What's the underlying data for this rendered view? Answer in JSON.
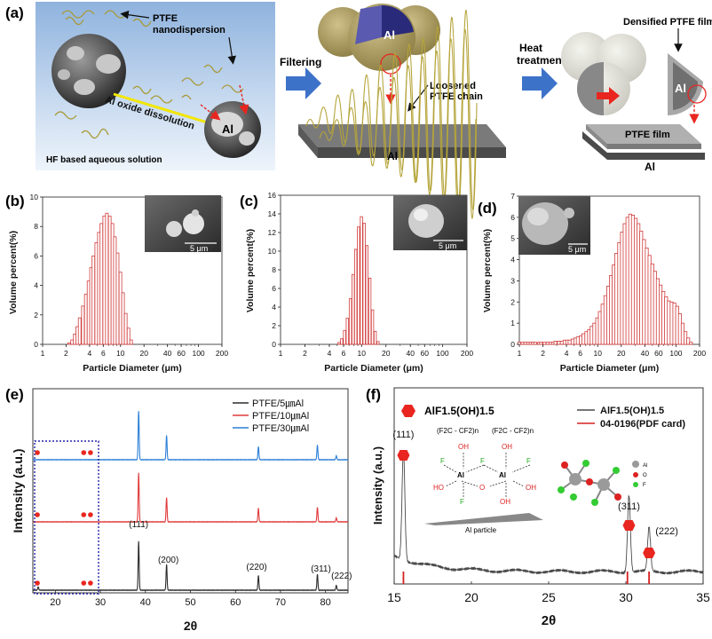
{
  "figure": {
    "panel_a": {
      "label": "(a)",
      "ptfe_nano": [
        "PTFE",
        "nanodispersion"
      ],
      "al_oxide": "Al oxide dissolution",
      "al": "Al",
      "hf": "HF based aqueous solution",
      "filtering": "Filtering",
      "loosened": [
        "Loosened",
        "PTFE chain"
      ],
      "heat": [
        "Heat",
        "treatment"
      ],
      "densified": "Densified PTFE film",
      "ptfe_film": "PTFE film"
    },
    "panel_b": {
      "label": "(b)",
      "scalebar": "5 μm"
    },
    "panel_c": {
      "label": "(c)",
      "scalebar": "5 μm"
    },
    "panel_d": {
      "label": "(d)",
      "scalebar": "5 μm"
    },
    "panel_e": {
      "label": "(e)"
    },
    "panel_f": {
      "label": "(f)",
      "marker_legend": "AlF1.5(OH)1.5",
      "chem_top_left": "(F2C - CF2)n",
      "chem_top_right": "(F2C - CF2)n",
      "al_particle": "Al particle",
      "atom_legend": [
        "Al",
        "O",
        "F"
      ]
    }
  },
  "colors": {
    "hist_edge": "#d13b3b",
    "line_5um": "#2b2b2b",
    "line_10um": "#e03a3a",
    "line_30um": "#2c7fd6",
    "arrow": "#3d72c9",
    "marker": "#e8261f",
    "dotted_box": "#2424a8",
    "pdf_line": "#d62020"
  },
  "chart_data": [
    {
      "id": "b",
      "type": "bar",
      "xscale": "log",
      "xlabel": "Particle Diameter (μm)",
      "ylabel": "Volume percent(%)",
      "xlim": [
        1,
        200
      ],
      "ylim": [
        0,
        10
      ],
      "xticks": [
        1,
        2,
        4,
        6,
        10,
        20,
        40,
        60,
        100,
        200
      ],
      "yticks": [
        0,
        2,
        4,
        6,
        8,
        10
      ],
      "x": [
        2.2,
        2.4,
        2.6,
        2.8,
        3.0,
        3.3,
        3.6,
        3.9,
        4.2,
        4.5,
        4.9,
        5.3,
        5.7,
        6.2,
        6.7,
        7.3,
        7.9,
        8.5,
        9.2,
        10,
        10.8,
        11.7,
        12.7,
        13.7
      ],
      "values": [
        0.1,
        0.3,
        0.7,
        1.2,
        1.8,
        2.6,
        3.4,
        4.3,
        5.2,
        6.0,
        6.9,
        7.6,
        8.2,
        8.7,
        8.9,
        8.7,
        8.2,
        7.3,
        6.2,
        4.9,
        3.5,
        2.1,
        1.1,
        0.3
      ]
    },
    {
      "id": "c",
      "type": "bar",
      "xscale": "log",
      "xlabel": "Particle Diameter (μm)",
      "ylabel": "Volume percent(%)",
      "xlim": [
        1,
        200
      ],
      "ylim": [
        0,
        16
      ],
      "xticks": [
        1,
        2,
        4,
        6,
        10,
        20,
        40,
        60,
        100,
        200
      ],
      "yticks": [
        0,
        2,
        4,
        6,
        8,
        10,
        12,
        14,
        16
      ],
      "x": [
        5.3,
        5.7,
        6.2,
        6.7,
        7.3,
        7.9,
        8.5,
        9.2,
        10,
        10.8,
        11.7,
        12.7,
        13.7,
        14.8,
        16.0
      ],
      "values": [
        0.2,
        0.6,
        1.5,
        2.8,
        4.9,
        7.5,
        10.2,
        12.6,
        13.7,
        13.0,
        10.6,
        7.1,
        3.7,
        1.4,
        0.3
      ]
    },
    {
      "id": "d",
      "type": "bar",
      "xscale": "log",
      "xlabel": "Particle Diameter (μm)",
      "ylabel": "Volume percent(%)",
      "xlim": [
        1,
        200
      ],
      "ylim": [
        0,
        7
      ],
      "xticks": [
        1,
        2,
        4,
        6,
        10,
        20,
        40,
        60,
        100,
        200
      ],
      "yticks": [
        0,
        1,
        2,
        3,
        4,
        5,
        6,
        7
      ],
      "x": [
        1.0,
        1.1,
        1.2,
        1.3,
        1.4,
        1.5,
        1.6,
        1.8,
        1.9,
        2.1,
        2.3,
        2.5,
        2.7,
        2.9,
        3.2,
        3.5,
        3.8,
        4.1,
        4.4,
        4.8,
        5.2,
        5.6,
        6.1,
        6.6,
        7.2,
        7.8,
        8.4,
        9.1,
        9.9,
        10.7,
        11.6,
        12.6,
        13.7,
        14.8,
        16.1,
        17.4,
        18.9,
        20.5,
        22.2,
        24.1,
        26.1,
        28.3,
        30.7,
        33.3,
        36.1,
        39.2,
        42.5,
        46.1,
        50.0,
        54.2,
        58.8,
        63.8,
        69.2,
        75.0,
        81.4,
        88.3,
        95.7,
        103.8,
        112.6,
        122.1,
        132.5,
        143.6,
        155.8
      ],
      "values": [
        0.1,
        0.1,
        0.1,
        0.1,
        0.1,
        0.1,
        0.1,
        0.1,
        0.1,
        0.1,
        0.1,
        0.1,
        0.1,
        0.15,
        0.15,
        0.15,
        0.2,
        0.2,
        0.2,
        0.25,
        0.3,
        0.35,
        0.4,
        0.5,
        0.6,
        0.7,
        0.85,
        1.0,
        1.25,
        1.55,
        1.9,
        2.3,
        2.75,
        3.25,
        3.75,
        4.3,
        4.8,
        5.3,
        5.7,
        6.0,
        6.15,
        6.1,
        5.95,
        5.7,
        5.35,
        4.95,
        4.55,
        4.2,
        3.8,
        3.45,
        3.1,
        2.8,
        2.5,
        2.25,
        2.05,
        2.0,
        1.95,
        1.8,
        1.45,
        1.0,
        0.6,
        0.3,
        0.1
      ]
    },
    {
      "id": "e",
      "type": "line",
      "xlabel": "2θ",
      "ylabel": "Intensity (a.u.)",
      "xlim": [
        15,
        85
      ],
      "xticks": [
        20,
        30,
        40,
        50,
        60,
        70,
        80
      ],
      "series": [
        {
          "name": "PTFE/5㎛Al",
          "color": "#2b2b2b",
          "offset": 0,
          "peaks": [
            [
              16.2,
              0.07
            ],
            [
              38.5,
              1.0
            ],
            [
              44.7,
              0.53
            ],
            [
              65.1,
              0.3
            ],
            [
              78.2,
              0.33
            ],
            [
              82.4,
              0.1
            ]
          ]
        },
        {
          "name": "PTFE/10㎛Al",
          "color": "#e03a3a",
          "offset": 1,
          "peaks": [
            [
              38.5,
              1.0
            ],
            [
              44.7,
              0.5
            ],
            [
              65.1,
              0.28
            ],
            [
              78.2,
              0.3
            ],
            [
              82.4,
              0.08
            ]
          ]
        },
        {
          "name": "PTFE/30㎛Al",
          "color": "#2c7fd6",
          "offset": 2,
          "peaks": [
            [
              38.5,
              1.0
            ],
            [
              44.7,
              0.5
            ],
            [
              65.1,
              0.27
            ],
            [
              78.2,
              0.3
            ],
            [
              82.4,
              0.08
            ]
          ]
        }
      ],
      "annotations": [
        {
          "x": 38.5,
          "text": "(111)"
        },
        {
          "x": 44.7,
          "text": "(200)"
        },
        {
          "x": 65.1,
          "text": "(220)"
        },
        {
          "x": 78.2,
          "text": "(311)"
        },
        {
          "x": 82.4,
          "text": "(222)"
        }
      ],
      "marker_x": [
        16.0,
        26.3,
        27.8
      ]
    },
    {
      "id": "f",
      "type": "line",
      "xlabel": "2θ",
      "ylabel": "Intensity (a.u.)",
      "xlim": [
        15,
        35
      ],
      "xticks": [
        15,
        20,
        25,
        30,
        35
      ],
      "series": [
        {
          "name": "AlF1.5(OH)1.5",
          "color": "#4a4a4a",
          "peaks": [
            [
              15.6,
              1.0
            ],
            [
              30.2,
              0.7
            ],
            [
              31.5,
              0.4
            ]
          ]
        },
        {
          "name": "04-0196(PDF card)",
          "color": "#d62020",
          "sticks": [
            15.6,
            30.1,
            31.5
          ]
        }
      ],
      "annotations": [
        {
          "x": 15.6,
          "text": "(111)"
        },
        {
          "x": 30.2,
          "text": "(311)"
        },
        {
          "x": 31.5,
          "text": "(222)"
        }
      ]
    }
  ]
}
